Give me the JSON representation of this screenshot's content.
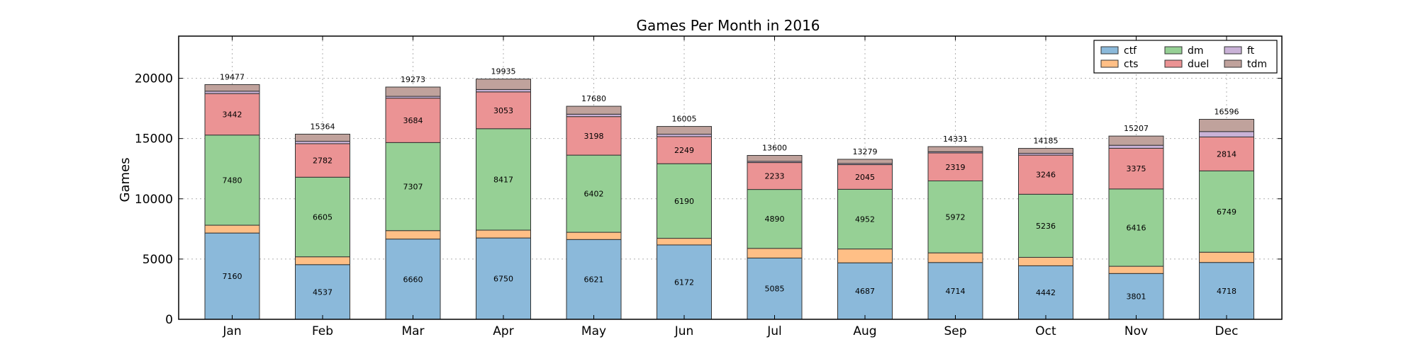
{
  "chart_data": {
    "type": "bar",
    "stacked": true,
    "title": "Games Per Month in 2016",
    "xlabel": "",
    "ylabel": "Games",
    "ylim": [
      0,
      23500
    ],
    "yticks": [
      0,
      5000,
      10000,
      15000,
      20000
    ],
    "grid": true,
    "legend_position": "top-right",
    "categories": [
      "Jan",
      "Feb",
      "Mar",
      "Apr",
      "May",
      "Jun",
      "Jul",
      "Aug",
      "Sep",
      "Oct",
      "Nov",
      "Dec"
    ],
    "totals": [
      19477,
      15364,
      19273,
      19935,
      17680,
      16005,
      13600,
      13279,
      14331,
      14185,
      15207,
      16596
    ],
    "series": [
      {
        "name": "ctf",
        "color": "#8bb9da",
        "labeled": true,
        "values": [
          7160,
          4537,
          6660,
          6750,
          6621,
          6172,
          5085,
          4687,
          4714,
          4442,
          3801,
          4718
        ]
      },
      {
        "name": "cts",
        "color": "#ffbf86",
        "labeled": false,
        "values": [
          650,
          650,
          700,
          650,
          600,
          550,
          800,
          1150,
          800,
          700,
          600,
          850
        ]
      },
      {
        "name": "dm",
        "color": "#96d095",
        "labeled": true,
        "values": [
          7480,
          6605,
          7307,
          8417,
          6402,
          6190,
          4890,
          4952,
          5972,
          5236,
          6416,
          6749
        ]
      },
      {
        "name": "duel",
        "color": "#eb9394",
        "labeled": true,
        "values": [
          3442,
          2782,
          3684,
          3053,
          3198,
          2249,
          2233,
          2045,
          2319,
          3246,
          3375,
          2814
        ]
      },
      {
        "name": "ft",
        "color": "#c9b2d7",
        "labeled": false,
        "values": [
          200,
          200,
          150,
          200,
          200,
          200,
          100,
          100,
          100,
          150,
          250,
          450
        ]
      },
      {
        "name": "tdm",
        "color": "#c0a29c",
        "labeled": false,
        "values": [
          545,
          590,
          772,
          865,
          659,
          644,
          492,
          345,
          426,
          411,
          765,
          1015
        ]
      }
    ]
  }
}
